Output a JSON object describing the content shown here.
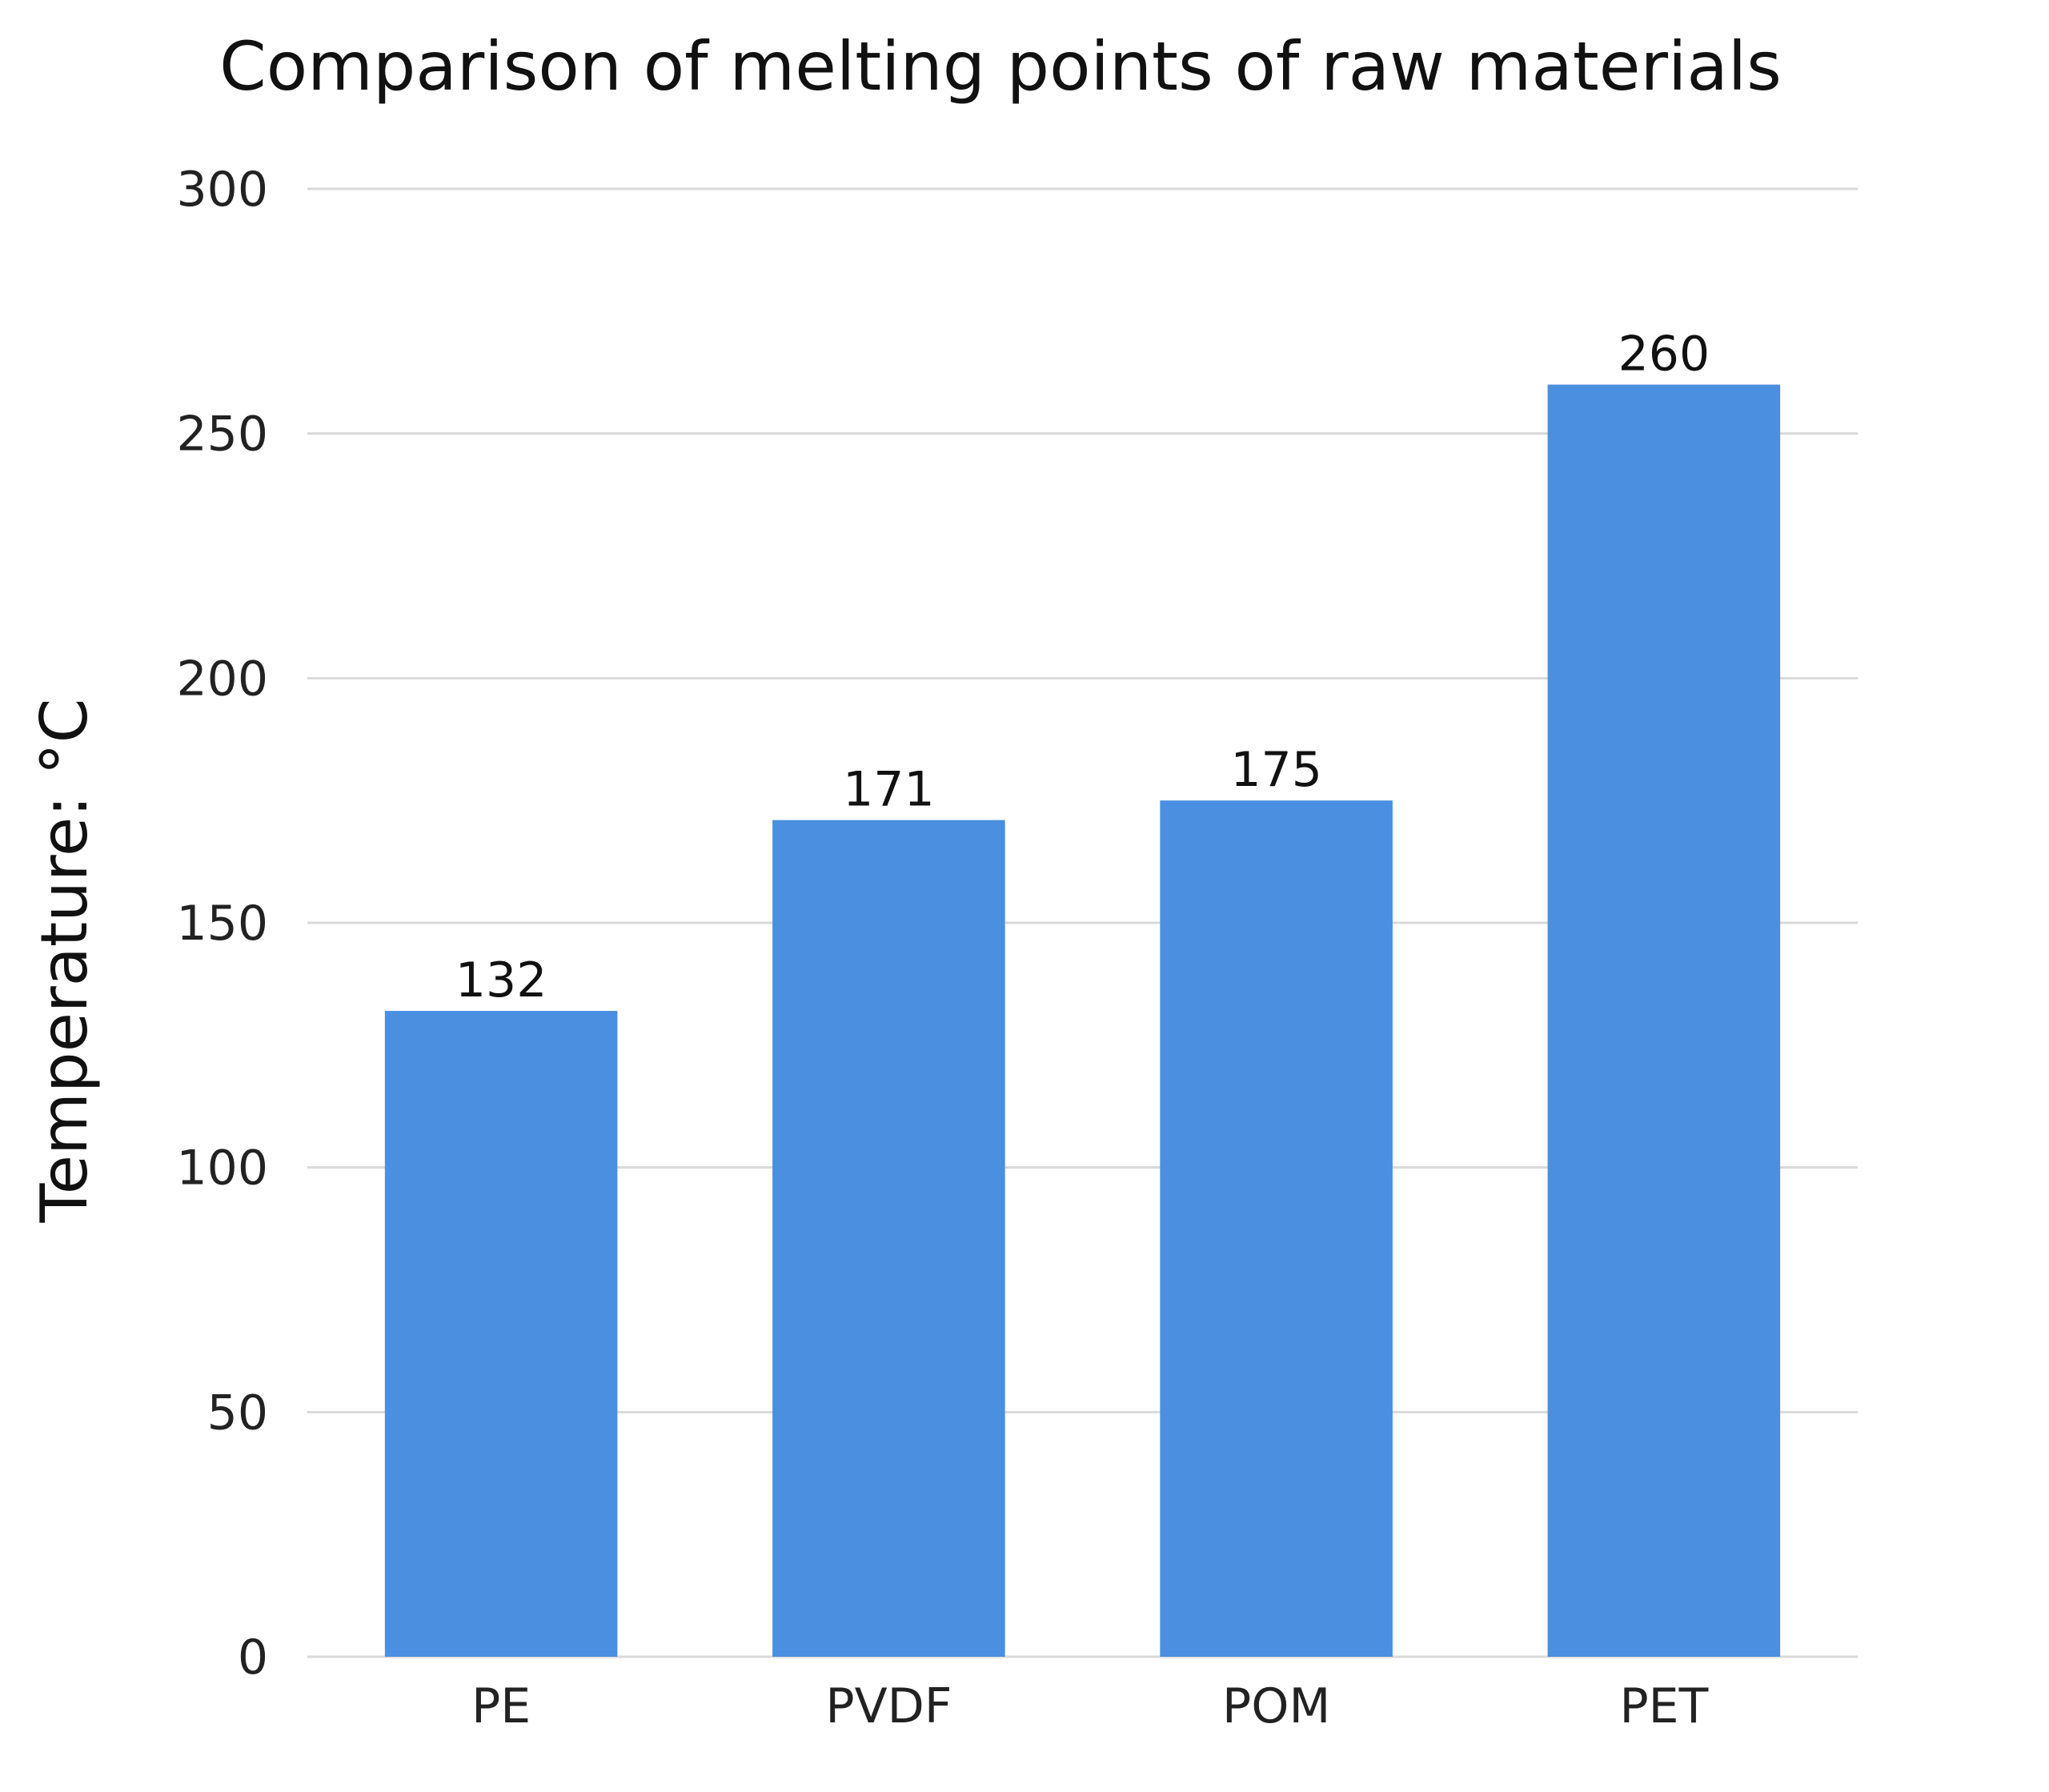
{
  "chart_data": {
    "type": "bar",
    "title": "Comparison of melting points of raw materials",
    "xlabel": "",
    "ylabel": "Temperature: °C",
    "categories": [
      "PE",
      "PVDF",
      "POM",
      "PET"
    ],
    "values": [
      132,
      171,
      175,
      260
    ],
    "data_labels": [
      "132",
      "171",
      "175",
      "260"
    ],
    "ylim": [
      0,
      300
    ],
    "yticks": [
      0,
      50,
      100,
      150,
      200,
      250,
      300
    ],
    "ytick_labels": [
      "0",
      "50",
      "100",
      "150",
      "200",
      "250",
      "300"
    ],
    "grid": true,
    "legend": "none",
    "bar_color": "#4A8FE0",
    "grid_color": "#D9D9D9"
  }
}
